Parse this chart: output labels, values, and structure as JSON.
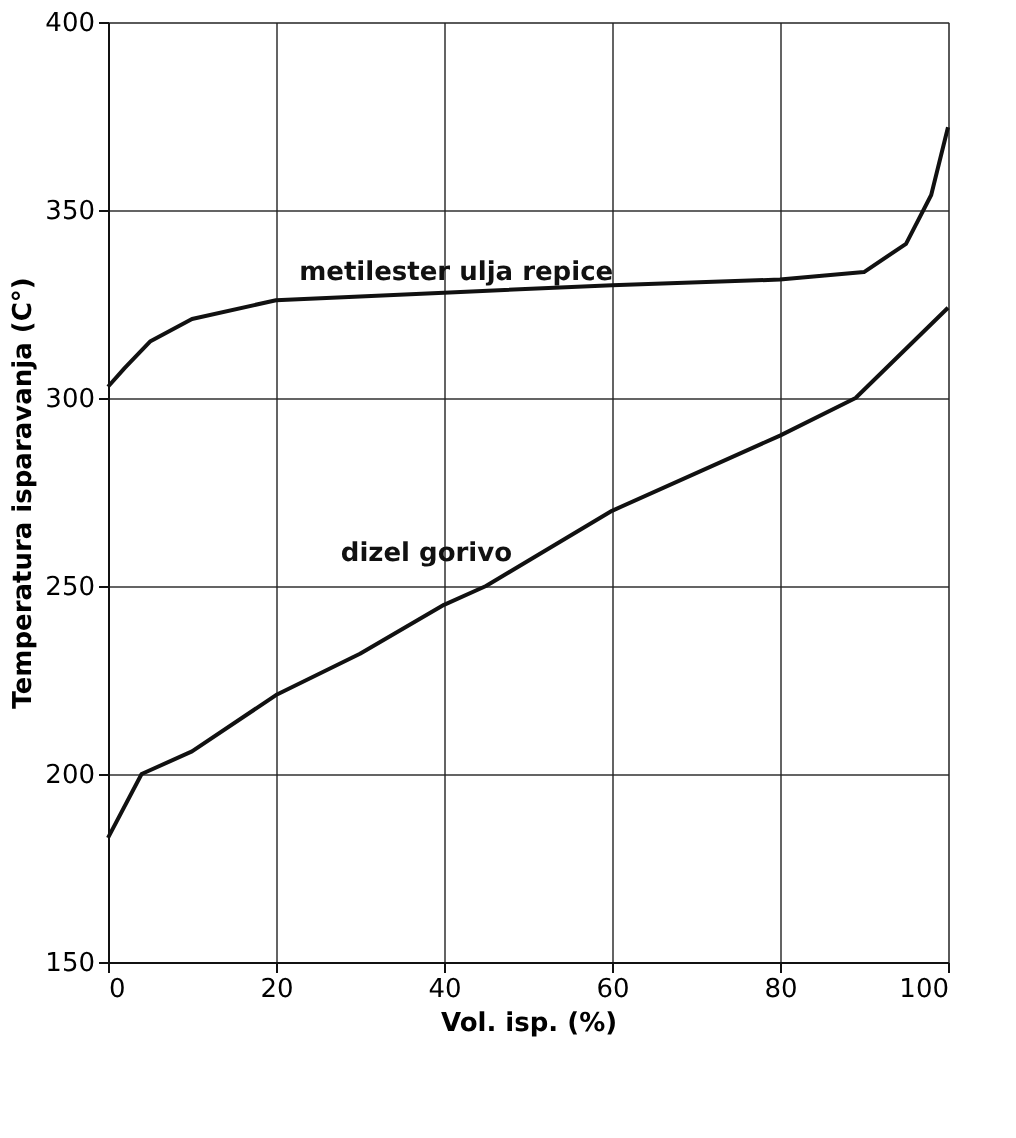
{
  "chart_data": {
    "type": "line",
    "xlabel": "Vol. isp. (%)",
    "ylabel": "Temperatura isparavanja (C°)",
    "xlim": [
      0,
      100
    ],
    "xticks": [
      0,
      20,
      40,
      60,
      80,
      100
    ],
    "ylim": [
      150,
      400
    ],
    "yticks": [
      150,
      200,
      250,
      300,
      350,
      400
    ],
    "grid": true,
    "series": [
      {
        "color": "#111111",
        "x": [
          0,
          2,
          5,
          10,
          20,
          40,
          60,
          80,
          90,
          95,
          98,
          100
        ],
        "values": [
          303,
          308,
          315,
          321,
          326,
          328,
          330,
          331.5,
          333.5,
          341,
          354,
          372
        ]
      },
      {
        "color": "#111111",
        "x": [
          0,
          4,
          10,
          20,
          30,
          40,
          45,
          60,
          80,
          89,
          100
        ],
        "values": [
          183,
          200,
          206,
          221,
          232,
          245,
          250,
          270,
          290,
          300,
          324
        ]
      }
    ],
    "annotations": [
      {
        "text": "metilester ulja repice",
        "x": 18,
        "y": 326
      },
      {
        "text": "dizel gorivo",
        "x": 42,
        "y": 247
      }
    ]
  }
}
